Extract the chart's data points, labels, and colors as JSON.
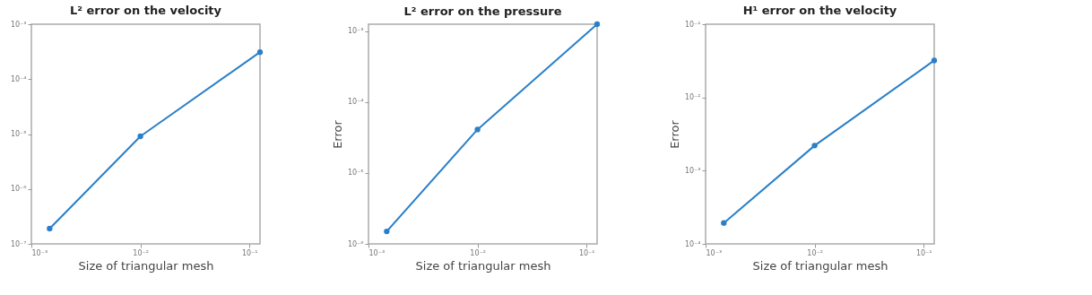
{
  "chart_data": [
    {
      "type": "line",
      "title": "L² error on the velocity",
      "xlabel": "Size of triangular mesh",
      "log": "xy",
      "marker": "circle",
      "line_style": "solid",
      "grid": false,
      "x": [
        0.00147,
        0.01,
        0.125
      ],
      "series": [
        {
          "color": "#2a7fc8",
          "values": [
            1.9e-07,
            9.1e-06,
            0.00031
          ]
        }
      ],
      "xlim": [
        0.001,
        0.125
      ],
      "xticks": [
        {
          "value": 0.001,
          "label": "10⁻³"
        },
        {
          "value": 0.01,
          "label": "10⁻²"
        },
        {
          "value": 0.1,
          "label": "10⁻¹"
        }
      ],
      "ylim": [
        1e-07,
        0.001
      ],
      "yticks": [
        {
          "value": 1e-07,
          "label": "10⁻⁷"
        },
        {
          "value": 1e-06,
          "label": "10⁻⁶"
        },
        {
          "value": 1e-05,
          "label": "10⁻⁵"
        },
        {
          "value": 0.0001,
          "label": "10⁻⁴"
        },
        {
          "value": 0.001,
          "label": "10⁻³"
        }
      ]
    },
    {
      "type": "line",
      "title": "L² error on the pressure",
      "xlabel": "Size of triangular mesh",
      "ylabel": "Error",
      "log": "xy",
      "marker": "circle",
      "line_style": "solid",
      "grid": false,
      "x": [
        0.00147,
        0.01,
        0.125
      ],
      "series": [
        {
          "color": "#2a7fc8",
          "values": [
            1.5e-06,
            4.1e-05,
            0.00125
          ]
        }
      ],
      "xlim": [
        0.001,
        0.125
      ],
      "xticks": [
        {
          "value": 0.001,
          "label": "10⁻³"
        },
        {
          "value": 0.01,
          "label": "10⁻²"
        },
        {
          "value": 0.1,
          "label": "10⁻¹"
        }
      ],
      "ylim": [
        1e-06,
        0.00125
      ],
      "yticks": [
        {
          "value": 1e-06,
          "label": "10⁻⁶"
        },
        {
          "value": 1e-05,
          "label": "10⁻⁵"
        },
        {
          "value": 0.0001,
          "label": "10⁻⁴"
        },
        {
          "value": 0.001,
          "label": "10⁻³"
        }
      ]
    },
    {
      "type": "line",
      "title": "H¹ error on the velocity",
      "xlabel": "Size of triangular mesh",
      "ylabel": "Error",
      "log": "xy",
      "marker": "circle",
      "line_style": "solid",
      "grid": false,
      "x": [
        0.00147,
        0.01,
        0.125
      ],
      "series": [
        {
          "color": "#2a7fc8",
          "values": [
            0.000193,
            0.0022,
            0.032
          ]
        }
      ],
      "xlim": [
        0.001,
        0.125
      ],
      "xticks": [
        {
          "value": 0.001,
          "label": "10⁻³"
        },
        {
          "value": 0.01,
          "label": "10⁻²"
        },
        {
          "value": 0.1,
          "label": "10⁻¹"
        }
      ],
      "ylim": [
        0.0001,
        0.1
      ],
      "yticks": [
        {
          "value": 0.0001,
          "label": "10⁻⁴"
        },
        {
          "value": 0.001,
          "label": "10⁻³"
        },
        {
          "value": 0.01,
          "label": "10⁻²"
        },
        {
          "value": 0.1,
          "label": "10⁻¹"
        }
      ]
    }
  ]
}
